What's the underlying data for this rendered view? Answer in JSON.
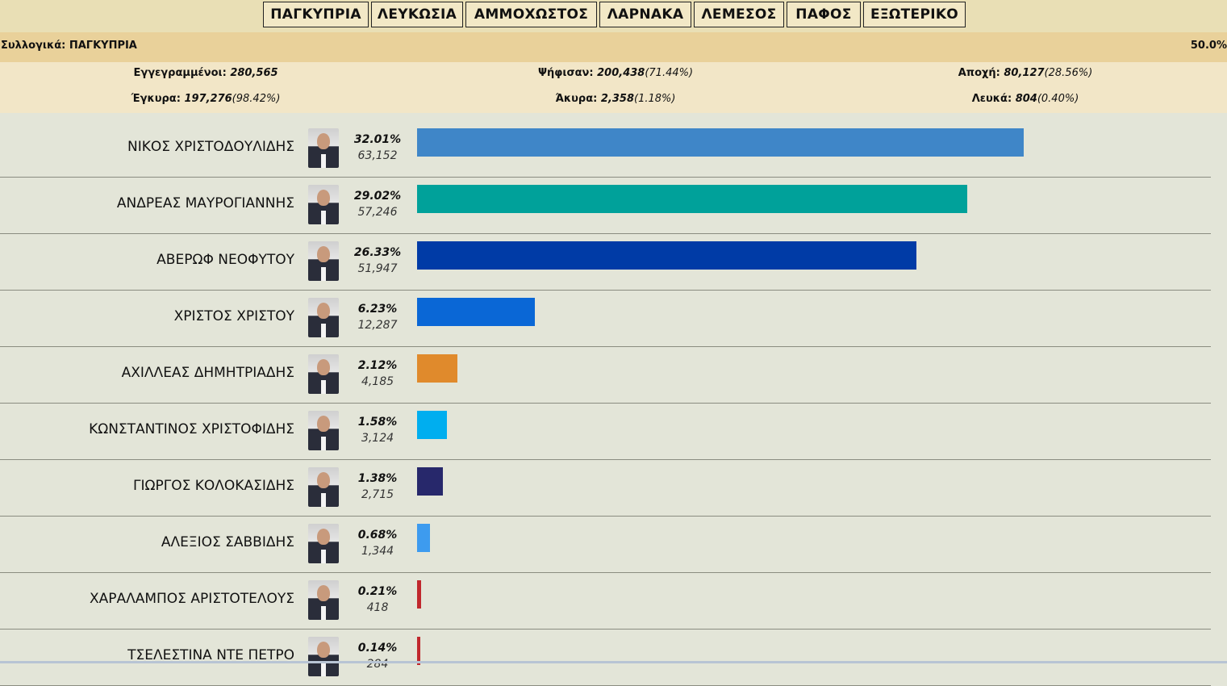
{
  "tabs": [
    "ΠΑΓΚΥΠΡΙΑ",
    "ΛΕΥΚΩΣΙΑ",
    "ΑΜΜΟΧΩΣΤΟΣ",
    "ΛΑΡΝΑΚΑ",
    "ΛΕΜΕΣΟΣ",
    "ΠΑΦΟΣ",
    "ΕΞΩΤΕΡΙΚΟ"
  ],
  "summary": {
    "title": "Συλλογικά: ΠΑΓΚΥΠΡΙΑ",
    "counted": "50.0%"
  },
  "stats": {
    "registered": {
      "label": "Εγγεγραμμένοι:",
      "value": "280,565",
      "pct": ""
    },
    "voted": {
      "label": "Ψήφισαν:",
      "value": "200,438",
      "pct": "(71.44%)"
    },
    "abstention": {
      "label": "Αποχή:",
      "value": "80,127",
      "pct": "(28.56%)"
    },
    "valid": {
      "label": "Έγκυρα:",
      "value": "197,276",
      "pct": "(98.42%)"
    },
    "invalid": {
      "label": "Άκυρα:",
      "value": "2,358",
      "pct": "(1.18%)"
    },
    "blank": {
      "label": "Λευκά:",
      "value": "804",
      "pct": "(0.40%)"
    }
  },
  "candidates": [
    {
      "name": "ΝΙΚΟΣ ΧΡΙΣΤΟΔΟΥΛΙΔΗΣ",
      "pct": "32.01%",
      "votes": "63,152",
      "share": 32.01,
      "color": "#3f86c8"
    },
    {
      "name": "ΑΝΔΡΕΑΣ ΜΑΥΡΟΓΙΑΝΝΗΣ",
      "pct": "29.02%",
      "votes": "57,246",
      "share": 29.02,
      "color": "#00a19a"
    },
    {
      "name": "ΑΒΕΡΩΦ ΝΕΟΦΥΤΟΥ",
      "pct": "26.33%",
      "votes": "51,947",
      "share": 26.33,
      "color": "#003ba6"
    },
    {
      "name": "ΧΡΙΣΤΟΣ ΧΡΙΣΤΟΥ",
      "pct": "6.23%",
      "votes": "12,287",
      "share": 6.23,
      "color": "#0a67d6"
    },
    {
      "name": "ΑΧΙΛΛΕΑΣ ΔΗΜΗΤΡΙΑΔΗΣ",
      "pct": "2.12%",
      "votes": "4,185",
      "share": 2.12,
      "color": "#e08a2c"
    },
    {
      "name": "ΚΩΝΣΤΑΝΤΙΝΟΣ ΧΡΙΣΤΟΦΙΔΗΣ",
      "pct": "1.58%",
      "votes": "3,124",
      "share": 1.58,
      "color": "#00aeef"
    },
    {
      "name": "ΓΙΩΡΓΟΣ ΚΟΛΟΚΑΣΙΔΗΣ",
      "pct": "1.38%",
      "votes": "2,715",
      "share": 1.38,
      "color": "#27286b"
    },
    {
      "name": "ΑΛΕΞΙΟΣ ΣΑΒΒΙΔΗΣ",
      "pct": "0.68%",
      "votes": "1,344",
      "share": 0.68,
      "color": "#3d9bef"
    },
    {
      "name": "ΧΑΡΑΛΑΜΠΟΣ ΑΡΙΣΤΟΤΕΛΟΥΣ",
      "pct": "0.21%",
      "votes": "418",
      "share": 0.21,
      "color": "#c0282d"
    },
    {
      "name": "ΤΣΕΛΕΣΤΙΝΑ ΝΤΕ ΠΕΤΡΟ",
      "pct": "0.14%",
      "votes": "284",
      "share": 0.14,
      "color": "#c0282d"
    }
  ]
}
